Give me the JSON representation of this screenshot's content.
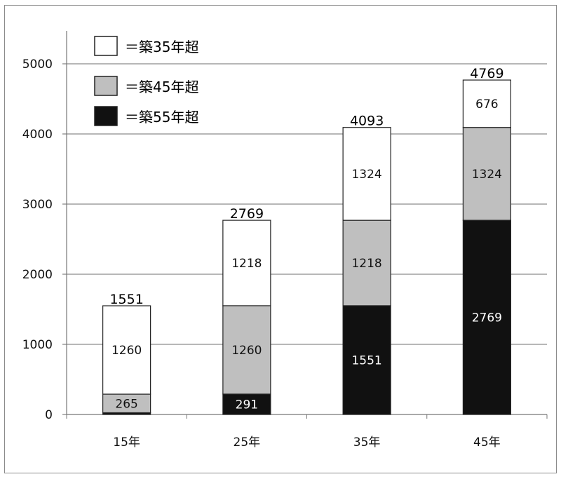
{
  "chart_data": {
    "type": "bar",
    "stacked": true,
    "categories": [
      "15年",
      "25年",
      "35年",
      "45年"
    ],
    "series": [
      {
        "name": "＝築55年超",
        "values": [
          25,
          291,
          1551,
          2769
        ],
        "color": "#111111",
        "label_color": "#ffffff",
        "show_labels": [
          false,
          true,
          true,
          true
        ]
      },
      {
        "name": "＝築45年超",
        "values": [
          265,
          1260,
          1218,
          1324
        ],
        "color": "#bfbfbf",
        "label_color": "#111111",
        "show_labels": [
          true,
          true,
          true,
          true
        ]
      },
      {
        "name": "＝築35年超",
        "values": [
          1260,
          1218,
          1324,
          676
        ],
        "color": "#ffffff",
        "label_color": "#111111",
        "show_labels": [
          true,
          true,
          true,
          true
        ]
      }
    ],
    "totals": [
      1551,
      2769,
      4093,
      4769
    ],
    "ylim": [
      0,
      5000
    ],
    "yticks": [
      0,
      1000,
      2000,
      3000,
      4000,
      5000
    ],
    "grid": true,
    "legend_position": "top-left",
    "legend_order": [
      "＝築35年超",
      "＝築45年超",
      "＝築55年超"
    ],
    "title": "",
    "xlabel": "",
    "ylabel": ""
  }
}
